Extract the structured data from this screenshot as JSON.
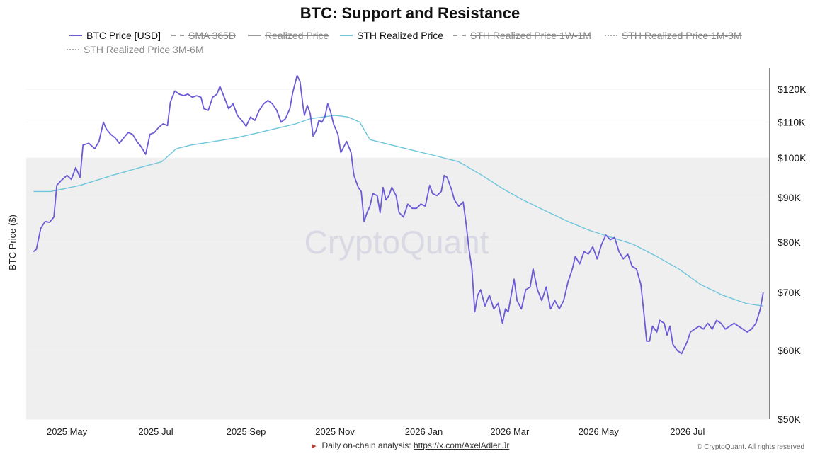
{
  "title": "BTC: Support and Resistance",
  "legend": [
    {
      "label": "BTC Price [USD]",
      "style": "solid-btc",
      "active": true
    },
    {
      "label": "SMA 365D",
      "style": "dash",
      "active": false
    },
    {
      "label": "Realized Price",
      "style": "solid-gray",
      "active": false
    },
    {
      "label": "STH Realized Price",
      "style": "solid-sth",
      "active": true
    },
    {
      "label": "STH Realized Price 1W-1M",
      "style": "dash",
      "active": false
    },
    {
      "label": "STH Realized Price 1M-3M",
      "style": "dot",
      "active": false
    },
    {
      "label": "STH Realized Price 3M-6M",
      "style": "dot",
      "active": false
    }
  ],
  "watermark": "CryptoQuant",
  "footer": {
    "text": "Daily on-chain analysis: ",
    "link": "https://x.com/AxelAdler.Jr",
    "copyright": "© CryptoQuant. All rights reserved"
  },
  "colors": {
    "btc": "#6b5bd6",
    "sth": "#6fc6dc",
    "band": "#efefef"
  },
  "chart_data": {
    "type": "line",
    "title": "BTC: Support and Resistance",
    "ylabel": "BTC Price ($)",
    "xlabel": "",
    "y_scale": "log",
    "ylim": [
      50000,
      127000
    ],
    "xlim": [
      "2025-04-03",
      "2026-08-26"
    ],
    "y_ticks": [
      {
        "value": 120000,
        "label": "$120K"
      },
      {
        "value": 110000,
        "label": "$110K"
      },
      {
        "value": 100000,
        "label": "$100K"
      },
      {
        "value": 90000,
        "label": "$90K"
      },
      {
        "value": 80000,
        "label": "$80K"
      },
      {
        "value": 70000,
        "label": "$70K"
      },
      {
        "value": 60000,
        "label": "$60K"
      },
      {
        "value": 50000,
        "label": "$50K"
      }
    ],
    "x_ticks": [
      {
        "value": "2025-05-01",
        "label": "2025 May"
      },
      {
        "value": "2025-07-01",
        "label": "2025 Jul"
      },
      {
        "value": "2025-09-01",
        "label": "2025 Sep"
      },
      {
        "value": "2025-11-01",
        "label": "2025 Nov"
      },
      {
        "value": "2026-01-01",
        "label": "2026 Jan"
      },
      {
        "value": "2026-03-01",
        "label": "2026 Mar"
      },
      {
        "value": "2026-05-01",
        "label": "2026 May"
      },
      {
        "value": "2026-07-01",
        "label": "2026 Jul"
      }
    ],
    "shaded_band": {
      "y_from": 50000,
      "y_to": 100000
    },
    "grid": true,
    "series": [
      {
        "name": "BTC Price [USD]",
        "color": "#6b5bd6",
        "points": [
          [
            "2025-04-08",
            78000
          ],
          [
            "2025-04-10",
            78500
          ],
          [
            "2025-04-13",
            83000
          ],
          [
            "2025-04-16",
            84500
          ],
          [
            "2025-04-19",
            84300
          ],
          [
            "2025-04-22",
            85500
          ],
          [
            "2025-04-24",
            93000
          ],
          [
            "2025-04-27",
            94200
          ],
          [
            "2025-05-01",
            95500
          ],
          [
            "2025-05-04",
            94500
          ],
          [
            "2025-05-07",
            97500
          ],
          [
            "2025-05-10",
            95000
          ],
          [
            "2025-05-12",
            103500
          ],
          [
            "2025-05-16",
            104000
          ],
          [
            "2025-05-20",
            102500
          ],
          [
            "2025-05-23",
            104500
          ],
          [
            "2025-05-26",
            110000
          ],
          [
            "2025-05-28",
            108000
          ],
          [
            "2025-05-31",
            106500
          ],
          [
            "2025-06-03",
            105500
          ],
          [
            "2025-06-06",
            104000
          ],
          [
            "2025-06-09",
            105500
          ],
          [
            "2025-06-12",
            107000
          ],
          [
            "2025-06-15",
            106500
          ],
          [
            "2025-06-18",
            104500
          ],
          [
            "2025-06-21",
            103000
          ],
          [
            "2025-06-24",
            101000
          ],
          [
            "2025-06-27",
            106500
          ],
          [
            "2025-06-30",
            107000
          ],
          [
            "2025-07-03",
            108500
          ],
          [
            "2025-07-06",
            109500
          ],
          [
            "2025-07-09",
            109000
          ],
          [
            "2025-07-11",
            116000
          ],
          [
            "2025-07-14",
            119500
          ],
          [
            "2025-07-17",
            118500
          ],
          [
            "2025-07-20",
            118000
          ],
          [
            "2025-07-23",
            118500
          ],
          [
            "2025-07-26",
            117500
          ],
          [
            "2025-07-29",
            118000
          ],
          [
            "2025-08-01",
            117500
          ],
          [
            "2025-08-03",
            114000
          ],
          [
            "2025-08-06",
            113500
          ],
          [
            "2025-08-09",
            117500
          ],
          [
            "2025-08-12",
            118500
          ],
          [
            "2025-08-14",
            121000
          ],
          [
            "2025-08-17",
            117500
          ],
          [
            "2025-08-20",
            114000
          ],
          [
            "2025-08-23",
            115500
          ],
          [
            "2025-08-26",
            112000
          ],
          [
            "2025-08-29",
            110500
          ],
          [
            "2025-09-01",
            108800
          ],
          [
            "2025-09-04",
            111500
          ],
          [
            "2025-09-07",
            110500
          ],
          [
            "2025-09-10",
            113500
          ],
          [
            "2025-09-13",
            115500
          ],
          [
            "2025-09-16",
            116500
          ],
          [
            "2025-09-19",
            115500
          ],
          [
            "2025-09-22",
            113500
          ],
          [
            "2025-09-25",
            110000
          ],
          [
            "2025-09-28",
            111000
          ],
          [
            "2025-10-01",
            114000
          ],
          [
            "2025-10-03",
            119000
          ],
          [
            "2025-10-06",
            124500
          ],
          [
            "2025-10-08",
            122500
          ],
          [
            "2025-10-10",
            115000
          ],
          [
            "2025-10-11",
            112000
          ],
          [
            "2025-10-13",
            115000
          ],
          [
            "2025-10-15",
            112500
          ],
          [
            "2025-10-17",
            106000
          ],
          [
            "2025-10-19",
            107500
          ],
          [
            "2025-10-21",
            110500
          ],
          [
            "2025-10-23",
            110000
          ],
          [
            "2025-10-25",
            111500
          ],
          [
            "2025-10-27",
            115500
          ],
          [
            "2025-10-29",
            113000
          ],
          [
            "2025-10-31",
            109500
          ],
          [
            "2025-11-03",
            106500
          ],
          [
            "2025-11-05",
            101500
          ],
          [
            "2025-11-07",
            103000
          ],
          [
            "2025-11-09",
            104500
          ],
          [
            "2025-11-12",
            101500
          ],
          [
            "2025-11-14",
            95500
          ],
          [
            "2025-11-17",
            92500
          ],
          [
            "2025-11-19",
            91500
          ],
          [
            "2025-11-21",
            84500
          ],
          [
            "2025-11-23",
            86500
          ],
          [
            "2025-11-25",
            88000
          ],
          [
            "2025-11-27",
            91000
          ],
          [
            "2025-11-30",
            90500
          ],
          [
            "2025-12-02",
            86500
          ],
          [
            "2025-12-04",
            92500
          ],
          [
            "2025-12-06",
            89500
          ],
          [
            "2025-12-08",
            90500
          ],
          [
            "2025-12-10",
            92500
          ],
          [
            "2025-12-13",
            90500
          ],
          [
            "2025-12-15",
            86500
          ],
          [
            "2025-12-18",
            85500
          ],
          [
            "2025-12-21",
            88500
          ],
          [
            "2025-12-24",
            87500
          ],
          [
            "2025-12-27",
            87500
          ],
          [
            "2025-12-30",
            88500
          ],
          [
            "2026-01-02",
            88000
          ],
          [
            "2026-01-05",
            93000
          ],
          [
            "2026-01-07",
            91000
          ],
          [
            "2026-01-10",
            90500
          ],
          [
            "2026-01-13",
            91500
          ],
          [
            "2026-01-15",
            95500
          ],
          [
            "2026-01-17",
            95000
          ],
          [
            "2026-01-20",
            92000
          ],
          [
            "2026-01-22",
            89500
          ],
          [
            "2026-01-25",
            88000
          ],
          [
            "2026-01-28",
            89000
          ],
          [
            "2026-01-30",
            84000
          ],
          [
            "2026-02-01",
            78500
          ],
          [
            "2026-02-03",
            74500
          ],
          [
            "2026-02-05",
            66500
          ],
          [
            "2026-02-07",
            69500
          ],
          [
            "2026-02-09",
            70500
          ],
          [
            "2026-02-12",
            67500
          ],
          [
            "2026-02-15",
            69500
          ],
          [
            "2026-02-18",
            67000
          ],
          [
            "2026-02-21",
            68000
          ],
          [
            "2026-02-24",
            64500
          ],
          [
            "2026-02-26",
            67000
          ],
          [
            "2026-02-28",
            66500
          ],
          [
            "2026-03-02",
            69500
          ],
          [
            "2026-03-04",
            72500
          ],
          [
            "2026-03-06",
            68500
          ],
          [
            "2026-03-09",
            67000
          ],
          [
            "2026-03-12",
            70500
          ],
          [
            "2026-03-15",
            71000
          ],
          [
            "2026-03-17",
            74500
          ],
          [
            "2026-03-20",
            70500
          ],
          [
            "2026-03-23",
            68500
          ],
          [
            "2026-03-26",
            71000
          ],
          [
            "2026-03-29",
            67000
          ],
          [
            "2026-04-01",
            68500
          ],
          [
            "2026-04-04",
            67000
          ],
          [
            "2026-04-07",
            68500
          ],
          [
            "2026-04-10",
            72000
          ],
          [
            "2026-04-13",
            74500
          ],
          [
            "2026-04-15",
            77000
          ],
          [
            "2026-04-18",
            75500
          ],
          [
            "2026-04-21",
            78000
          ],
          [
            "2026-04-24",
            77500
          ],
          [
            "2026-04-27",
            79000
          ],
          [
            "2026-04-30",
            76500
          ],
          [
            "2026-05-03",
            79500
          ],
          [
            "2026-05-06",
            81500
          ],
          [
            "2026-05-09",
            80500
          ],
          [
            "2026-05-12",
            81000
          ],
          [
            "2026-05-15",
            78000
          ],
          [
            "2026-05-18",
            76500
          ],
          [
            "2026-05-21",
            77500
          ],
          [
            "2026-05-24",
            75000
          ],
          [
            "2026-05-27",
            74500
          ],
          [
            "2026-05-30",
            71500
          ],
          [
            "2026-06-01",
            66500
          ],
          [
            "2026-06-03",
            61500
          ],
          [
            "2026-06-05",
            61500
          ],
          [
            "2026-06-07",
            64000
          ],
          [
            "2026-06-10",
            63000
          ],
          [
            "2026-06-12",
            65000
          ],
          [
            "2026-06-15",
            64500
          ],
          [
            "2026-06-17",
            62500
          ],
          [
            "2026-06-19",
            64000
          ],
          [
            "2026-06-21",
            61000
          ],
          [
            "2026-06-24",
            60000
          ],
          [
            "2026-06-27",
            59500
          ],
          [
            "2026-06-29",
            60500
          ],
          [
            "2026-07-01",
            61500
          ],
          [
            "2026-07-03",
            63000
          ],
          [
            "2026-07-06",
            63500
          ],
          [
            "2026-07-09",
            64000
          ],
          [
            "2026-07-12",
            63500
          ],
          [
            "2026-07-15",
            64500
          ],
          [
            "2026-07-18",
            63500
          ],
          [
            "2026-07-21",
            65000
          ],
          [
            "2026-07-24",
            64500
          ],
          [
            "2026-07-27",
            63500
          ],
          [
            "2026-07-30",
            64000
          ],
          [
            "2026-08-02",
            64500
          ],
          [
            "2026-08-05",
            64000
          ],
          [
            "2026-08-08",
            63500
          ],
          [
            "2026-08-11",
            63000
          ],
          [
            "2026-08-14",
            63500
          ],
          [
            "2026-08-17",
            64500
          ],
          [
            "2026-08-20",
            67000
          ],
          [
            "2026-08-22",
            70000
          ]
        ]
      },
      {
        "name": "STH Realized Price",
        "color": "#6fc6dc",
        "points": [
          [
            "2025-04-08",
            91500
          ],
          [
            "2025-04-20",
            91500
          ],
          [
            "2025-05-10",
            93000
          ],
          [
            "2025-06-01",
            95500
          ],
          [
            "2025-06-20",
            97500
          ],
          [
            "2025-07-05",
            99000
          ],
          [
            "2025-07-15",
            102500
          ],
          [
            "2025-07-25",
            103500
          ],
          [
            "2025-08-10",
            104500
          ],
          [
            "2025-08-25",
            105500
          ],
          [
            "2025-09-10",
            107000
          ],
          [
            "2025-09-25",
            108500
          ],
          [
            "2025-10-05",
            109500
          ],
          [
            "2025-10-15",
            111000
          ],
          [
            "2025-11-01",
            112000
          ],
          [
            "2025-11-10",
            111500
          ],
          [
            "2025-11-18",
            110000
          ],
          [
            "2025-11-25",
            105000
          ],
          [
            "2025-12-10",
            103500
          ],
          [
            "2025-12-25",
            102000
          ],
          [
            "2026-01-10",
            100500
          ],
          [
            "2026-01-25",
            99000
          ],
          [
            "2026-02-10",
            95500
          ],
          [
            "2026-02-25",
            92000
          ],
          [
            "2026-03-10",
            89500
          ],
          [
            "2026-03-25",
            87000
          ],
          [
            "2026-04-10",
            84500
          ],
          [
            "2026-04-25",
            82500
          ],
          [
            "2026-05-10",
            81000
          ],
          [
            "2026-05-25",
            79500
          ],
          [
            "2026-06-10",
            77000
          ],
          [
            "2026-06-25",
            74500
          ],
          [
            "2026-07-10",
            71500
          ],
          [
            "2026-07-25",
            69500
          ],
          [
            "2026-08-10",
            68000
          ],
          [
            "2026-08-22",
            67500
          ]
        ]
      }
    ]
  }
}
